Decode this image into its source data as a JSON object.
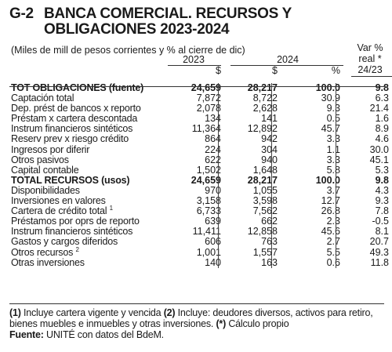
{
  "title": {
    "code": "G-2",
    "text": "BANCA COMERCIAL. RECURSOS Y OBLIGACIONES 2023-2024"
  },
  "header": {
    "units": "(Miles de mill de pesos corrientes y % al cierre de dic)",
    "year_2023": "2023",
    "year_2024": "2024",
    "var_line1": "Var %",
    "var_line2": "real *",
    "var_line3": "24/23",
    "cur_2023": "$",
    "cur_2024": "$",
    "pct": "%"
  },
  "rows": [
    {
      "label": "TOT OBLIGACIONES (fuente)",
      "v2023": "24,659",
      "v2024": "28,217",
      "pct": "100.0",
      "var": "9.8",
      "bold": true
    },
    {
      "label": "Captación total",
      "v2023": "7,872",
      "v2024": "8,722",
      "pct": "30.9",
      "var": "6.3"
    },
    {
      "label": "Dep. prést de bancos x reporto",
      "v2023": "2,078",
      "v2024": "2,628",
      "pct": "9.3",
      "var": "21.4"
    },
    {
      "label": "Préstam x cartera descontada",
      "v2023": "134",
      "v2024": "141",
      "pct": "0.5",
      "var": "1.6"
    },
    {
      "label": "Instrum financieros sintéticos",
      "v2023": "11,364",
      "v2024": "12,892",
      "pct": "45.7",
      "var": "8.9"
    },
    {
      "label": "Reserv prev x riesgo crédito",
      "v2023": "864",
      "v2024": "942",
      "pct": "3.3",
      "var": "4.6"
    },
    {
      "label": "Ingresos por diferir",
      "v2023": "224",
      "v2024": "304",
      "pct": "1.1",
      "var": "30.0"
    },
    {
      "label": "Otros pasivos",
      "v2023": "622",
      "v2024": "940",
      "pct": "3.3",
      "var": "45.1"
    },
    {
      "label": "Capital contable",
      "v2023": "1,502",
      "v2024": "1,648",
      "pct": "5.8",
      "var": "5.3"
    },
    {
      "label": "TOTAL RECURSOS (usos)",
      "v2023": "24,659",
      "v2024": "28,217",
      "pct": "100.0",
      "var": "9.8",
      "bold": true
    },
    {
      "label": "Disponibilidades",
      "v2023": "970",
      "v2024": "1,055",
      "pct": "3.7",
      "var": "4.3"
    },
    {
      "label": "Inversiones en valores",
      "v2023": "3,158",
      "v2024": "3,598",
      "pct": "12.7",
      "var": "9.3"
    },
    {
      "label": "Cartera de crédito total",
      "sup": "1",
      "v2023": "6,733",
      "v2024": "7,562",
      "pct": "26.8",
      "var": "7.8"
    },
    {
      "label": "Préstamos por oprs de reporto",
      "v2023": "639",
      "v2024": "662",
      "pct": "2.3",
      "var": "-0.5"
    },
    {
      "label": "Instrum financieros sintéticos",
      "v2023": "11,411",
      "v2024": "12,858",
      "pct": "45.6",
      "var": "8.1"
    },
    {
      "label": "Gastos y cargos diferidos",
      "v2023": "606",
      "v2024": "763",
      "pct": "2.7",
      "var": "20.7"
    },
    {
      "label": "Otros recursos",
      "sup": "2",
      "v2023": "1,001",
      "v2024": "1,557",
      "pct": "5.5",
      "var": "49.3"
    },
    {
      "label": "Otras inversiones",
      "v2023": "140",
      "v2024": "163",
      "pct": "0.6",
      "var": "11.8"
    }
  ],
  "notes": {
    "n1_mark": "(1)",
    "n1_text": " Incluye cartera vigente y vencida ",
    "n2_mark": "(2)",
    "n2_text": " Incluye: deudores diversos, activos para retiro, bienes muebles e inmuebles y otras inversiones. ",
    "n3_mark": "(*)",
    "n3_text": " Cálculo propio",
    "source_label": "Fuente:",
    "source_text": " UNITÉ con datos del BdeM."
  }
}
